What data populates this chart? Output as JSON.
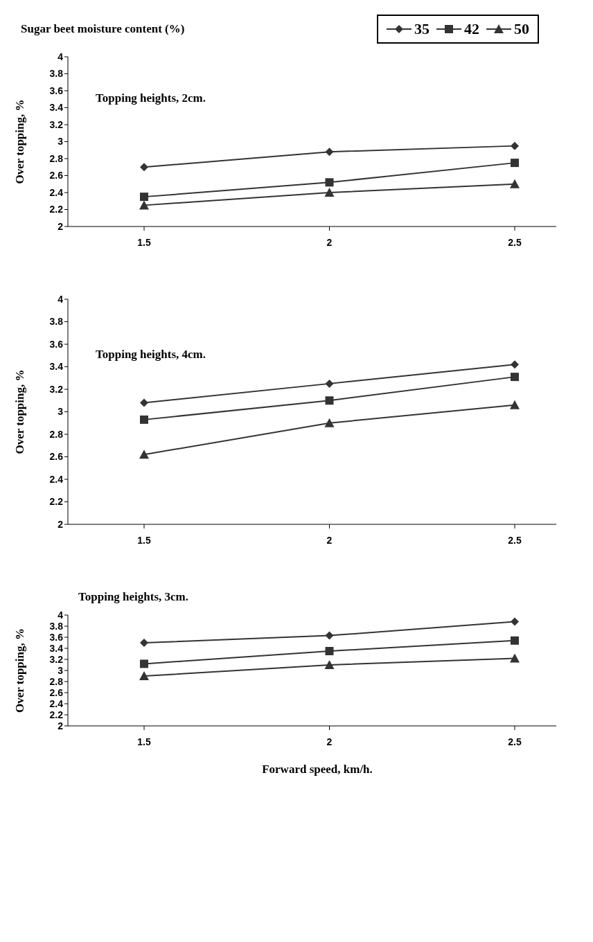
{
  "chart_data": [
    {
      "type": "line",
      "title": "Topping heights, 2cm.",
      "legend_title": "Sugar beet moisture content (%)",
      "legend": "top right",
      "ylabel": "Over topping, %",
      "categories": [
        "1.5",
        "2",
        "2.5"
      ],
      "ylim": [
        2,
        4
      ],
      "yticks": [
        2,
        2.2,
        2.4,
        2.6,
        2.8,
        3,
        3.2,
        3.4,
        3.6,
        3.8,
        4
      ],
      "series": [
        {
          "name": "35",
          "color": "#333333",
          "marker": "diamond",
          "values": [
            2.7,
            2.88,
            2.95
          ]
        },
        {
          "name": "42",
          "color": "#333333",
          "marker": "square",
          "values": [
            2.35,
            2.52,
            2.75
          ]
        },
        {
          "name": "50",
          "color": "#333333",
          "marker": "triangle",
          "values": [
            2.25,
            2.4,
            2.5
          ]
        }
      ]
    },
    {
      "type": "line",
      "title": "Topping heights, 4cm.",
      "ylabel": "Over topping, %",
      "categories": [
        "1.5",
        "2",
        "2.5"
      ],
      "ylim": [
        2,
        4
      ],
      "yticks": [
        2,
        2.2,
        2.4,
        2.6,
        2.8,
        3,
        3.2,
        3.4,
        3.6,
        3.8,
        4
      ],
      "series": [
        {
          "color": "#333333",
          "marker": "diamond",
          "values": [
            3.08,
            3.25,
            3.42
          ]
        },
        {
          "color": "#333333",
          "marker": "square",
          "values": [
            2.93,
            3.1,
            3.31
          ]
        },
        {
          "color": "#333333",
          "marker": "triangle",
          "values": [
            2.62,
            2.9,
            3.06
          ]
        }
      ]
    },
    {
      "type": "line",
      "title": "Topping heights, 3cm.",
      "ylabel": "Over topping, %",
      "xlabel": "Forward speed, km/h.",
      "categories": [
        "1.5",
        "2",
        "2.5"
      ],
      "ylim": [
        2,
        4
      ],
      "yticks": [
        2,
        2.2,
        2.4,
        2.6,
        2.8,
        3,
        3.2,
        3.4,
        3.6,
        3.8,
        4
      ],
      "series": [
        {
          "color": "#333333",
          "marker": "diamond",
          "values": [
            3.5,
            3.63,
            3.88
          ]
        },
        {
          "color": "#333333",
          "marker": "square",
          "values": [
            3.12,
            3.35,
            3.54
          ]
        },
        {
          "color": "#333333",
          "marker": "triangle",
          "values": [
            2.9,
            3.1,
            3.22
          ]
        }
      ]
    }
  ]
}
